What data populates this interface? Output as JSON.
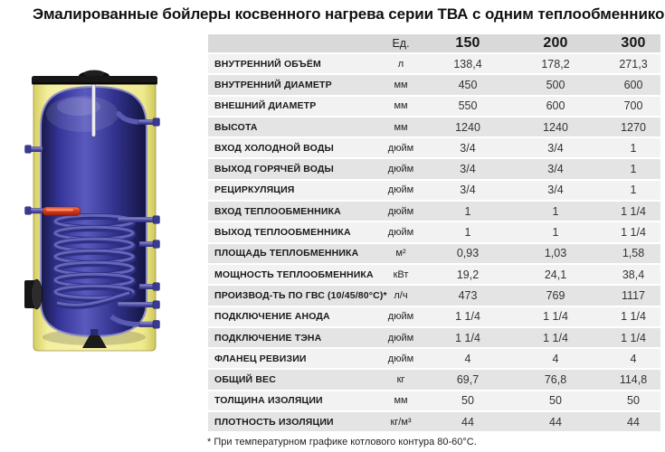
{
  "title": "Эмалированные бойлеры косвенного нагрева серии ТВА с одним теплообменником",
  "table": {
    "unit_header": "Ед.",
    "model_headers": [
      "150",
      "200",
      "300"
    ],
    "rows": [
      {
        "label": "ВНУТРЕННИЙ ОБЪЁМ",
        "unit": "л",
        "values": [
          "138,4",
          "178,2",
          "271,3"
        ]
      },
      {
        "label": "ВНУТРЕННИЙ ДИАМЕТР",
        "unit": "мм",
        "values": [
          "450",
          "500",
          "600"
        ]
      },
      {
        "label": "ВНЕШНИЙ ДИАМЕТР",
        "unit": "мм",
        "values": [
          "550",
          "600",
          "700"
        ]
      },
      {
        "label": "ВЫСОТА",
        "unit": "мм",
        "values": [
          "1240",
          "1240",
          "1270"
        ]
      },
      {
        "label": "ВХОД ХОЛОДНОЙ ВОДЫ",
        "unit": "дюйм",
        "values": [
          "3/4",
          "3/4",
          "1"
        ]
      },
      {
        "label": "ВЫХОД ГОРЯЧЕЙ ВОДЫ",
        "unit": "дюйм",
        "values": [
          "3/4",
          "3/4",
          "1"
        ]
      },
      {
        "label": "РЕЦИРКУЛЯЦИЯ",
        "unit": "дюйм",
        "values": [
          "3/4",
          "3/4",
          "1"
        ]
      },
      {
        "label": "ВХОД ТЕПЛООБМЕННИКА",
        "unit": "дюйм",
        "values": [
          "1",
          "1",
          "1 1/4"
        ]
      },
      {
        "label": "ВЫХОД ТЕПЛООБМЕННИКА",
        "unit": "дюйм",
        "values": [
          "1",
          "1",
          "1 1/4"
        ]
      },
      {
        "label": "ПЛОЩАДЬ ТЕПЛОБМЕННИКА",
        "unit": "м²",
        "values": [
          "0,93",
          "1,03",
          "1,58"
        ]
      },
      {
        "label": "МОЩНОСТЬ ТЕПЛООБМЕННИКА",
        "unit": "кВт",
        "values": [
          "19,2",
          "24,1",
          "38,4"
        ]
      },
      {
        "label": "ПРОИЗВОД-ТЬ ПО ГВС (10/45/80°С)*",
        "unit": "л/ч",
        "values": [
          "473",
          "769",
          "1117"
        ]
      },
      {
        "label": "ПОДКЛЮЧЕНИЕ АНОДА",
        "unit": "дюйм",
        "values": [
          "1 1/4",
          "1 1/4",
          "1 1/4"
        ]
      },
      {
        "label": "ПОДКЛЮЧЕНИЕ ТЭНА",
        "unit": "дюйм",
        "values": [
          "1 1/4",
          "1 1/4",
          "1 1/4"
        ]
      },
      {
        "label": "ФЛАНЕЦ РЕВИЗИИ",
        "unit": "дюйм",
        "values": [
          "4",
          "4",
          "4"
        ]
      },
      {
        "label": "ОБЩИЙ ВЕС",
        "unit": "кг",
        "values": [
          "69,7",
          "76,8",
          "114,8"
        ]
      },
      {
        "label": "ТОЛЩИНА ИЗОЛЯЦИИ",
        "unit": "мм",
        "values": [
          "50",
          "50",
          "50"
        ]
      },
      {
        "label": "ПЛОТНОСТЬ ИЗОЛЯЦИИ",
        "unit": "кг/м³",
        "values": [
          "44",
          "44",
          "44"
        ]
      }
    ]
  },
  "footnote": "* При температурном графике котлового контура 80-60°С.",
  "illustration": {
    "description": "boiler-cutaway",
    "colors": {
      "insulation": "#f4efa0",
      "tank": "#35359a",
      "coil": "#2e2e82",
      "heating_element": "#d63a1e",
      "cap": "#171717",
      "header_bg": "#d9d9d9",
      "row_light": "#f2f2f2",
      "row_dark": "#e4e4e4"
    }
  }
}
